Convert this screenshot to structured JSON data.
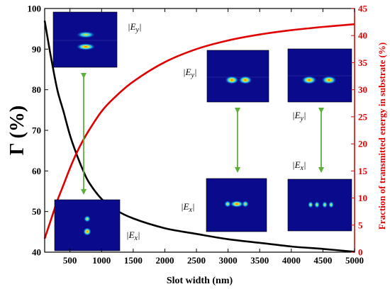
{
  "chart_data": {
    "type": "line",
    "xlabel": "Slot width (nm)",
    "ylabel_left": "Γ (%)",
    "ylabel_right": "Fraction of transmitted energy in substrate (%)",
    "xlim": [
      100,
      5000
    ],
    "ylim_left": [
      40,
      100
    ],
    "ylim_right": [
      0,
      45
    ],
    "xticks": [
      "500",
      "1000",
      "1500",
      "2000",
      "2500",
      "3000",
      "3500",
      "4000",
      "4500",
      "5000"
    ],
    "yticks_left": [
      "40",
      "50",
      "60",
      "70",
      "80",
      "90",
      "100"
    ],
    "yticks_right": [
      "0",
      "5",
      "10",
      "15",
      "20",
      "25",
      "30",
      "35",
      "40",
      "45"
    ],
    "grid": false,
    "series": [
      {
        "axis": "left",
        "color": "#000000",
        "x": [
          100,
          200,
          300,
          400,
          500,
          600,
          700,
          800,
          1000,
          1200,
          1500,
          2000,
          2500,
          3000,
          3500,
          4000,
          4500,
          5000
        ],
        "y": [
          97,
          88,
          80,
          74.5,
          68.8,
          64.3,
          60.4,
          57.2,
          53.1,
          50.6,
          48.3,
          45.9,
          44.5,
          43.2,
          42.3,
          41.4,
          40.8,
          40.1
        ]
      },
      {
        "axis": "right",
        "color": "#e00000",
        "x": [
          100,
          200,
          300,
          400,
          500,
          600,
          700,
          800,
          1000,
          1200,
          1500,
          2000,
          2500,
          3000,
          3500,
          4000,
          4500,
          5000
        ],
        "y": [
          2.5,
          6,
          9.5,
          12.5,
          15.5,
          18.2,
          20.5,
          22.5,
          26.0,
          28.5,
          31.5,
          35.1,
          37.5,
          39.1,
          40.2,
          41.0,
          41.6,
          42.1
        ]
      }
    ],
    "insets": [
      {
        "label": "|E",
        "sub": "y",
        "field": "Ey",
        "x_nm": 720
      },
      {
        "label": "|E",
        "sub": "x",
        "field": "Ex",
        "x_nm": 720
      },
      {
        "label": "|E",
        "sub": "y",
        "field": "Ey",
        "x_nm": 3150
      },
      {
        "label": "|E",
        "sub": "x",
        "field": "Ex",
        "x_nm": 3150
      },
      {
        "label": "|E",
        "sub": "y",
        "field": "Ey",
        "x_nm": 4500
      },
      {
        "label": "|E",
        "sub": "x",
        "field": "Ex",
        "x_nm": 4500
      }
    ],
    "colors": {
      "navy": "#0a0a8c",
      "arrow": "#5bb03a",
      "left_axis": "#000000",
      "right_axis": "#e00000"
    }
  }
}
